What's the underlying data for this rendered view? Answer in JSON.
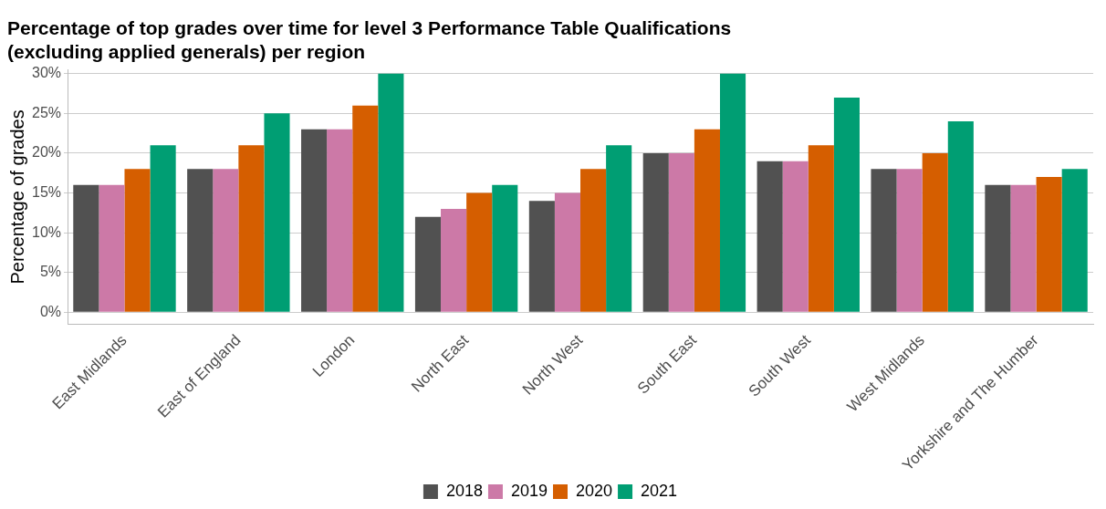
{
  "chart_data": {
    "type": "bar",
    "title": "Percentage of top grades over time for level 3 Performance Table Qualifications\n(excluding applied generals) per region",
    "ylabel": "Percentage of grades",
    "categories": [
      "East Midlands",
      "East of England",
      "London",
      "North East",
      "North West",
      "South East",
      "South West",
      "West Midlands",
      "Yorkshire and The Humber"
    ],
    "series": [
      {
        "name": "2018",
        "color": "#515151",
        "values": [
          16,
          18,
          23,
          12,
          14,
          20,
          19,
          18,
          16
        ]
      },
      {
        "name": "2019",
        "color": "#cc79a7",
        "values": [
          16,
          18,
          23,
          13,
          15,
          20,
          19,
          18,
          16
        ]
      },
      {
        "name": "2020",
        "color": "#d55e00",
        "values": [
          18,
          21,
          26,
          15,
          18,
          23,
          21,
          20,
          17
        ]
      },
      {
        "name": "2021",
        "color": "#009e73",
        "values": [
          21,
          25,
          30,
          16,
          21,
          30,
          27,
          24,
          18
        ]
      }
    ],
    "ylim": [
      -1.5,
      30.5
    ],
    "yticks": [
      {
        "value": 0,
        "label": "0%"
      },
      {
        "value": 5,
        "label": "5%"
      },
      {
        "value": 10,
        "label": "10%"
      },
      {
        "value": 15,
        "label": "15%"
      },
      {
        "value": 20,
        "label": "20%"
      },
      {
        "value": 25,
        "label": "25%"
      },
      {
        "value": 30,
        "label": "30%"
      }
    ],
    "grid": "y",
    "legend": "bottom"
  }
}
